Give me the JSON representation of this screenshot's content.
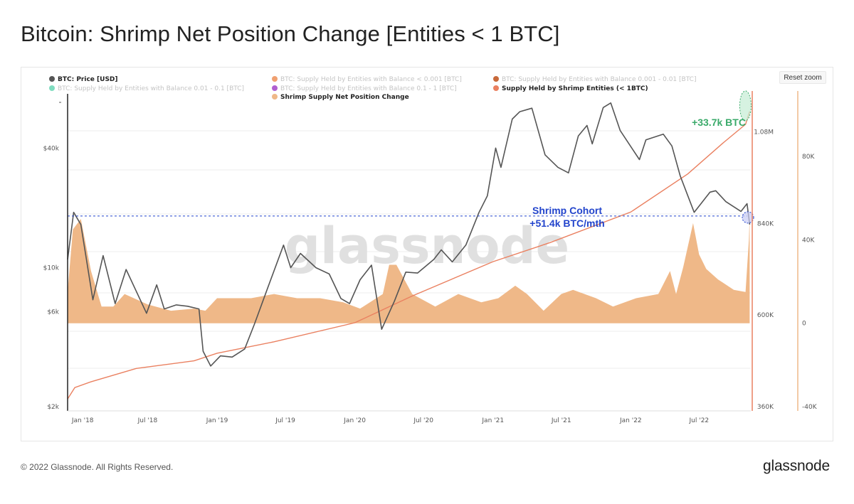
{
  "title": "Bitcoin: Shrimp Net Position Change [Entities < 1 BTC]",
  "reset_zoom_label": "Reset zoom",
  "footer": {
    "copyright": "© 2022 Glassnode. All Rights Reserved.",
    "logo": "glassnode"
  },
  "watermark": "glassnode",
  "legend": [
    {
      "label": "BTC: Price [USD]",
      "color": "#555555",
      "active": true
    },
    {
      "label": "BTC: Supply Held by Entities with Balance < 0.001 [BTC]",
      "color": "#f0a070",
      "active": false
    },
    {
      "label": "BTC: Supply Held by Entities with Balance 0.001 - 0.01 [BTC]",
      "color": "#c8693a",
      "active": false
    },
    {
      "label": "BTC: Supply Held by Entities with Balance 0.01 - 0.1 [BTC]",
      "color": "#7fdcbf",
      "active": false
    },
    {
      "label": "BTC: Supply Held by Entities with Balance 0.1 - 1 [BTC]",
      "color": "#b060d0",
      "active": false
    },
    {
      "label": "Supply Held by Shrimp Entities (< 1BTC)",
      "color": "#ea8060",
      "active": true
    },
    {
      "label": "Shrimp Supply Net Position Change",
      "color": "#efb888",
      "active": true
    }
  ],
  "annotations": {
    "green_label": "+33.7k BTC",
    "blue_label_line1": "Shrimp Cohort",
    "blue_label_line2": "+51.4k BTC/mth",
    "green_color": "#3aaa6a",
    "blue_color": "#2244cc"
  },
  "chart_data": {
    "type": "line",
    "title": "Bitcoin: Shrimp Net Position Change [Entities < 1 BTC]",
    "x_range": [
      "2017-12-01",
      "2022-11-15"
    ],
    "x_ticks": [
      "Jan '18",
      "Jul '18",
      "Jan '19",
      "Jul '19",
      "Jan '20",
      "Jul '20",
      "Jan '21",
      "Jul '21",
      "Jan '22",
      "Jul '22"
    ],
    "axes": {
      "price": {
        "scale": "log",
        "ticks": [
          "$2k",
          "$6k",
          "$10k",
          "$40k"
        ],
        "tick_values": [
          2000,
          6000,
          10000,
          40000
        ],
        "range": [
          2000,
          75000
        ]
      },
      "supply": {
        "scale": "linear",
        "ticks": [
          "360K",
          "600K",
          "840K",
          "1.08M"
        ],
        "tick_values": [
          360000,
          600000,
          840000,
          1080000
        ],
        "range": [
          360000,
          1180000
        ]
      },
      "net_change": {
        "scale": "linear",
        "ticks": [
          "-40K",
          "0",
          "40K",
          "80K"
        ],
        "tick_values": [
          -40000,
          0,
          40000,
          80000
        ],
        "range": [
          -40000,
          110000
        ]
      }
    },
    "series": [
      {
        "name": "BTC: Price [USD]",
        "axis": "price",
        "color": "#555555",
        "points": [
          [
            "2017-12-01",
            11000
          ],
          [
            "2017-12-17",
            19000
          ],
          [
            "2018-01-05",
            16500
          ],
          [
            "2018-02-06",
            6900
          ],
          [
            "2018-03-05",
            11500
          ],
          [
            "2018-04-06",
            6600
          ],
          [
            "2018-05-05",
            9800
          ],
          [
            "2018-06-28",
            5900
          ],
          [
            "2018-07-25",
            8200
          ],
          [
            "2018-08-14",
            6200
          ],
          [
            "2018-09-15",
            6500
          ],
          [
            "2018-10-15",
            6400
          ],
          [
            "2018-11-14",
            6200
          ],
          [
            "2018-11-25",
            3800
          ],
          [
            "2018-12-15",
            3200
          ],
          [
            "2019-01-10",
            3600
          ],
          [
            "2019-02-10",
            3550
          ],
          [
            "2019-03-15",
            3900
          ],
          [
            "2019-04-10",
            5200
          ],
          [
            "2019-05-15",
            7900
          ],
          [
            "2019-06-26",
            13000
          ],
          [
            "2019-07-15",
            10000
          ],
          [
            "2019-08-10",
            11800
          ],
          [
            "2019-09-20",
            10000
          ],
          [
            "2019-10-25",
            9300
          ],
          [
            "2019-11-25",
            7000
          ],
          [
            "2019-12-18",
            6600
          ],
          [
            "2020-01-15",
            8700
          ],
          [
            "2020-02-14",
            10300
          ],
          [
            "2020-03-12",
            4900
          ],
          [
            "2020-04-15",
            6800
          ],
          [
            "2020-05-15",
            9500
          ],
          [
            "2020-06-15",
            9400
          ],
          [
            "2020-07-28",
            11000
          ],
          [
            "2020-08-17",
            12300
          ],
          [
            "2020-09-15",
            10700
          ],
          [
            "2020-10-21",
            13000
          ],
          [
            "2020-11-25",
            19000
          ],
          [
            "2020-12-17",
            23000
          ],
          [
            "2021-01-08",
            40000
          ],
          [
            "2021-01-22",
            32000
          ],
          [
            "2021-02-21",
            56000
          ],
          [
            "2021-03-13",
            61000
          ],
          [
            "2021-04-14",
            63500
          ],
          [
            "2021-05-19",
            37000
          ],
          [
            "2021-06-22",
            32000
          ],
          [
            "2021-07-20",
            30000
          ],
          [
            "2021-08-15",
            46000
          ],
          [
            "2021-09-07",
            52000
          ],
          [
            "2021-09-21",
            42000
          ],
          [
            "2021-10-20",
            64000
          ],
          [
            "2021-11-09",
            67500
          ],
          [
            "2021-12-04",
            49000
          ],
          [
            "2022-01-24",
            35000
          ],
          [
            "2022-02-10",
            44000
          ],
          [
            "2022-03-28",
            47000
          ],
          [
            "2022-04-20",
            41000
          ],
          [
            "2022-05-12",
            29000
          ],
          [
            "2022-06-18",
            19000
          ],
          [
            "2022-07-30",
            24000
          ],
          [
            "2022-08-14",
            24400
          ],
          [
            "2022-09-10",
            21500
          ],
          [
            "2022-10-20",
            19200
          ],
          [
            "2022-11-05",
            21000
          ],
          [
            "2022-11-12",
            16500
          ]
        ]
      },
      {
        "name": "Supply Held by Shrimp Entities (< 1BTC)",
        "axis": "supply",
        "color": "#ea8060",
        "points": [
          [
            "2017-12-01",
            380000
          ],
          [
            "2017-12-20",
            410000
          ],
          [
            "2018-02-01",
            425000
          ],
          [
            "2018-06-01",
            460000
          ],
          [
            "2018-11-01",
            480000
          ],
          [
            "2019-01-01",
            500000
          ],
          [
            "2019-06-01",
            530000
          ],
          [
            "2020-01-01",
            580000
          ],
          [
            "2020-06-01",
            650000
          ],
          [
            "2021-01-01",
            740000
          ],
          [
            "2021-06-01",
            790000
          ],
          [
            "2022-01-01",
            870000
          ],
          [
            "2022-06-01",
            970000
          ],
          [
            "2022-09-01",
            1050000
          ],
          [
            "2022-11-01",
            1100000
          ],
          [
            "2022-11-12",
            1133700
          ]
        ]
      },
      {
        "name": "Shrimp Supply Net Position Change",
        "axis": "net_change",
        "type": "area",
        "color": "#efb888",
        "points": [
          [
            "2017-12-01",
            15000
          ],
          [
            "2017-12-15",
            45000
          ],
          [
            "2018-01-05",
            50000
          ],
          [
            "2018-02-01",
            25000
          ],
          [
            "2018-03-01",
            8000
          ],
          [
            "2018-04-01",
            8000
          ],
          [
            "2018-05-01",
            14000
          ],
          [
            "2018-07-01",
            9000
          ],
          [
            "2018-09-01",
            6000
          ],
          [
            "2018-11-01",
            7000
          ],
          [
            "2018-12-01",
            6000
          ],
          [
            "2019-01-01",
            12000
          ],
          [
            "2019-04-01",
            12000
          ],
          [
            "2019-06-01",
            14000
          ],
          [
            "2019-08-01",
            12000
          ],
          [
            "2019-10-01",
            12000
          ],
          [
            "2019-12-01",
            10000
          ],
          [
            "2020-01-15",
            7000
          ],
          [
            "2020-03-15",
            14000
          ],
          [
            "2020-04-01",
            28000
          ],
          [
            "2020-04-20",
            28000
          ],
          [
            "2020-06-01",
            14000
          ],
          [
            "2020-08-01",
            8000
          ],
          [
            "2020-10-01",
            14000
          ],
          [
            "2020-12-01",
            10000
          ],
          [
            "2021-01-15",
            12000
          ],
          [
            "2021-03-01",
            18000
          ],
          [
            "2021-04-01",
            14000
          ],
          [
            "2021-05-15",
            6000
          ],
          [
            "2021-07-01",
            14000
          ],
          [
            "2021-08-01",
            16000
          ],
          [
            "2021-10-01",
            12000
          ],
          [
            "2021-11-15",
            8000
          ],
          [
            "2022-01-15",
            12000
          ],
          [
            "2022-03-15",
            14000
          ],
          [
            "2022-04-15",
            25000
          ],
          [
            "2022-05-01",
            14000
          ],
          [
            "2022-05-20",
            27000
          ],
          [
            "2022-06-15",
            48000
          ],
          [
            "2022-07-01",
            33000
          ],
          [
            "2022-07-20",
            26000
          ],
          [
            "2022-08-20",
            21000
          ],
          [
            "2022-10-01",
            16000
          ],
          [
            "2022-11-01",
            15000
          ],
          [
            "2022-11-10",
            40000
          ],
          [
            "2022-11-12",
            51400
          ]
        ]
      }
    ],
    "reference_line": {
      "value": 51400,
      "axis": "net_change",
      "label": "Shrimp Cohort +51.4k BTC/mth"
    }
  }
}
